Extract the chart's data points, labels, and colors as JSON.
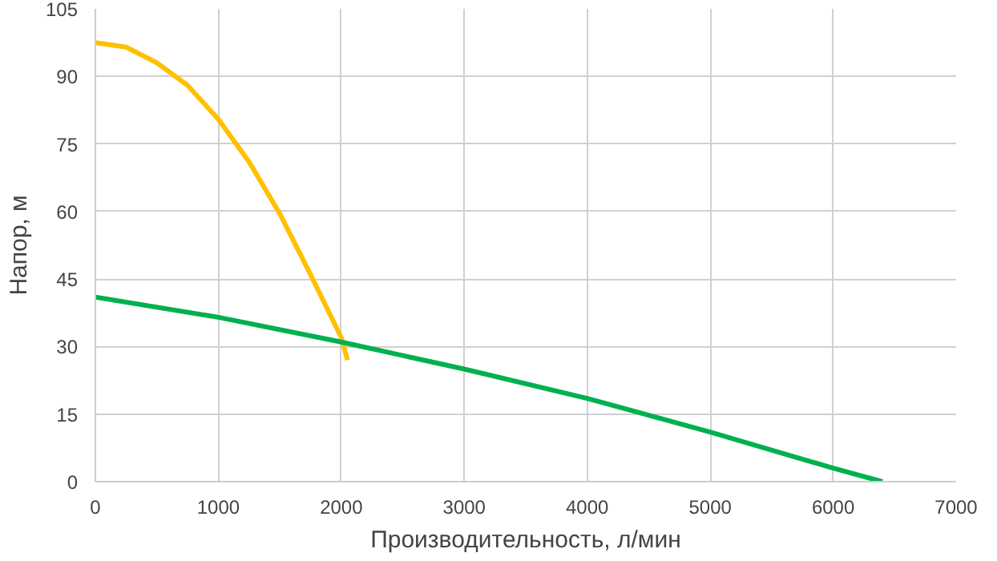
{
  "chart_data": {
    "type": "line",
    "xlabel": "Производительность, л/мин",
    "ylabel": "Напор, м",
    "xlim": [
      0,
      7000
    ],
    "xticks": [
      0,
      1000,
      2000,
      3000,
      4000,
      5000,
      6000,
      7000
    ],
    "ylim": [
      0,
      105
    ],
    "yticks": [
      0,
      15,
      30,
      45,
      60,
      75,
      90,
      105
    ],
    "grid": true,
    "series": [
      {
        "color": "#ffc000",
        "x": [
          0,
          250,
          500,
          750,
          1000,
          1250,
          1500,
          1750,
          2000,
          2050
        ],
        "values": [
          97.5,
          96.5,
          93,
          88,
          80.5,
          71,
          59.5,
          46,
          32,
          27
        ]
      },
      {
        "color": "#00b050",
        "x": [
          0,
          1000,
          2000,
          3000,
          4000,
          5000,
          6000,
          6400
        ],
        "values": [
          41,
          36.5,
          31,
          25,
          18.5,
          11,
          3,
          0
        ]
      }
    ]
  }
}
